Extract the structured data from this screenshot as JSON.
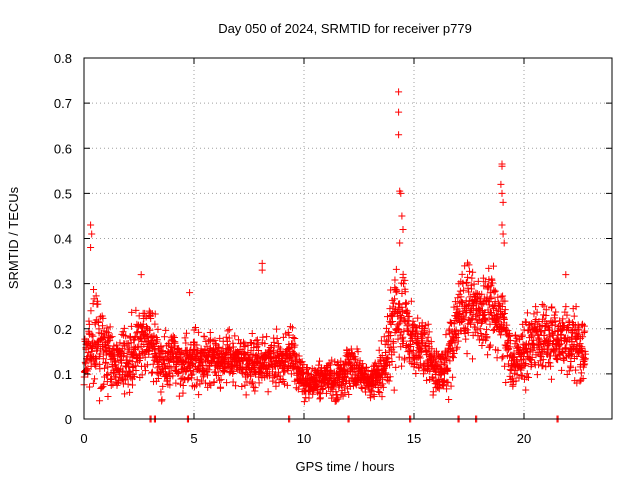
{
  "chart_data": {
    "type": "scatter",
    "title": "Day 050 of 2024, SRMTID for receiver p779",
    "xlabel": "GPS time / hours",
    "ylabel": "SRMTID / TECUs",
    "xlim": [
      0,
      24
    ],
    "ylim": [
      0,
      0.8
    ],
    "x_ticks": [
      0,
      5,
      10,
      15,
      20
    ],
    "y_ticks": [
      0,
      0.1,
      0.2,
      0.3,
      0.4,
      0.5,
      0.6,
      0.7,
      0.8
    ],
    "x_tick_labels": [
      "0",
      "5",
      "10",
      "15",
      "20"
    ],
    "y_tick_labels": [
      "0",
      "0.1",
      "0.2",
      "0.3",
      "0.4",
      "0.5",
      "0.6",
      "0.7",
      "0.8"
    ],
    "grid": true,
    "marker": "plus",
    "series_color": "#ff0000",
    "zero_value_times": [
      3.0,
      3.2,
      4.7,
      9.3,
      12.0,
      14.8,
      17.0,
      17.8,
      21.5
    ],
    "notable_points": [
      {
        "x": 0.3,
        "y": 0.43
      },
      {
        "x": 0.35,
        "y": 0.41
      },
      {
        "x": 0.3,
        "y": 0.38
      },
      {
        "x": 8.1,
        "y": 0.345
      },
      {
        "x": 8.1,
        "y": 0.33
      },
      {
        "x": 14.3,
        "y": 0.725
      },
      {
        "x": 14.3,
        "y": 0.68
      },
      {
        "x": 14.3,
        "y": 0.63
      },
      {
        "x": 14.35,
        "y": 0.505
      },
      {
        "x": 14.4,
        "y": 0.5
      },
      {
        "x": 14.45,
        "y": 0.45
      },
      {
        "x": 14.5,
        "y": 0.42
      },
      {
        "x": 14.35,
        "y": 0.39
      },
      {
        "x": 19.0,
        "y": 0.565
      },
      {
        "x": 19.0,
        "y": 0.56
      },
      {
        "x": 18.95,
        "y": 0.52
      },
      {
        "x": 19.0,
        "y": 0.5
      },
      {
        "x": 19.05,
        "y": 0.48
      },
      {
        "x": 19.0,
        "y": 0.43
      },
      {
        "x": 19.05,
        "y": 0.41
      },
      {
        "x": 19.1,
        "y": 0.39
      },
      {
        "x": 2.6,
        "y": 0.32
      },
      {
        "x": 4.8,
        "y": 0.28
      },
      {
        "x": 21.9,
        "y": 0.32
      }
    ],
    "envelope": {
      "x": [
        0,
        0.5,
        1,
        1.5,
        2,
        2.5,
        3,
        3.5,
        4,
        4.5,
        5,
        5.5,
        6,
        6.5,
        7,
        7.5,
        8,
        8.5,
        9,
        9.5,
        10,
        10.5,
        11,
        11.5,
        12,
        12.5,
        13,
        13.5,
        14,
        14.5,
        15,
        15.5,
        16,
        16.5,
        17,
        17.5,
        18,
        18.5,
        19,
        19.5,
        20,
        20.5,
        21,
        21.5,
        22,
        22.5,
        22.8
      ],
      "center": [
        0.14,
        0.18,
        0.15,
        0.12,
        0.14,
        0.17,
        0.18,
        0.12,
        0.13,
        0.12,
        0.14,
        0.13,
        0.13,
        0.14,
        0.13,
        0.12,
        0.13,
        0.12,
        0.13,
        0.14,
        0.08,
        0.08,
        0.09,
        0.08,
        0.12,
        0.1,
        0.08,
        0.1,
        0.2,
        0.22,
        0.16,
        0.17,
        0.1,
        0.12,
        0.22,
        0.24,
        0.23,
        0.25,
        0.21,
        0.12,
        0.15,
        0.18,
        0.19,
        0.18,
        0.17,
        0.16,
        0.15
      ],
      "spread": [
        0.08,
        0.12,
        0.09,
        0.07,
        0.08,
        0.1,
        0.08,
        0.07,
        0.07,
        0.06,
        0.07,
        0.07,
        0.06,
        0.06,
        0.06,
        0.06,
        0.07,
        0.06,
        0.06,
        0.06,
        0.04,
        0.04,
        0.05,
        0.05,
        0.06,
        0.05,
        0.04,
        0.06,
        0.12,
        0.13,
        0.08,
        0.08,
        0.05,
        0.08,
        0.11,
        0.1,
        0.09,
        0.1,
        0.09,
        0.06,
        0.08,
        0.08,
        0.08,
        0.08,
        0.08,
        0.08,
        0.08
      ]
    },
    "num_points": 2600
  }
}
